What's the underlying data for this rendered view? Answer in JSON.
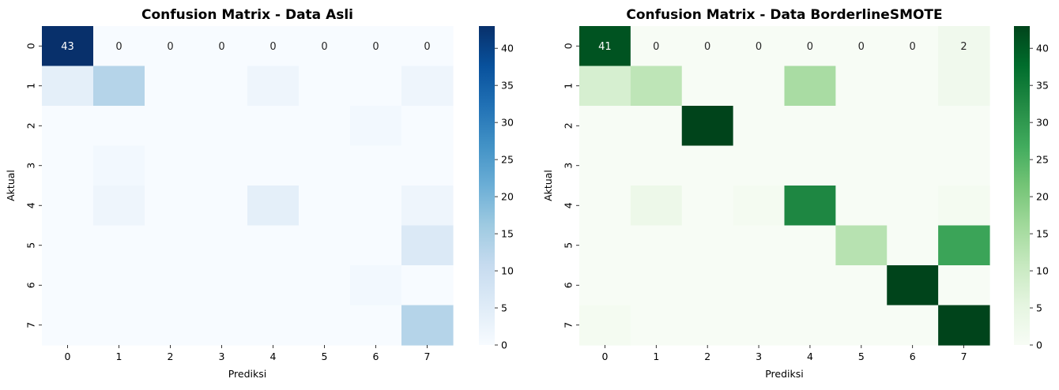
{
  "chart_data": [
    {
      "type": "heatmap",
      "title": "Confusion Matrix - Data Asli",
      "xlabel": "Prediksi",
      "ylabel": "Aktual",
      "x_categories": [
        "0",
        "1",
        "2",
        "3",
        "4",
        "5",
        "6",
        "7"
      ],
      "y_categories": [
        "0",
        "1",
        "2",
        "3",
        "4",
        "5",
        "6",
        "7"
      ],
      "values": [
        [
          43,
          0,
          0,
          0,
          0,
          0,
          0,
          0
        ],
        [
          4,
          13,
          0,
          0,
          2,
          0,
          0,
          2
        ],
        [
          0,
          0,
          0,
          0,
          0,
          0,
          1,
          0
        ],
        [
          0,
          1,
          0,
          0,
          0,
          0,
          0,
          0
        ],
        [
          0,
          2,
          0,
          0,
          4,
          0,
          0,
          2
        ],
        [
          0,
          0,
          0,
          0,
          0,
          0,
          0,
          6
        ],
        [
          0,
          0,
          0,
          0,
          0,
          0,
          1,
          0
        ],
        [
          0,
          0,
          0,
          0,
          0,
          0,
          0,
          13
        ]
      ],
      "annotated_rows": [
        0
      ],
      "colormap": "Blues",
      "colorbar": {
        "min": 0,
        "max": 43,
        "ticks": [
          0,
          5,
          10,
          15,
          20,
          25,
          30,
          35,
          40
        ]
      }
    },
    {
      "type": "heatmap",
      "title": "Confusion Matrix - Data BorderlineSMOTE",
      "xlabel": "Prediksi",
      "ylabel": "Aktual",
      "x_categories": [
        "0",
        "1",
        "2",
        "3",
        "4",
        "5",
        "6",
        "7"
      ],
      "y_categories": [
        "0",
        "1",
        "2",
        "3",
        "4",
        "5",
        "6",
        "7"
      ],
      "values": [
        [
          41,
          0,
          0,
          0,
          0,
          0,
          0,
          2
        ],
        [
          8,
          12,
          0,
          0,
          15,
          0,
          0,
          2
        ],
        [
          0,
          0,
          43,
          0,
          0,
          0,
          0,
          0
        ],
        [
          0,
          0,
          0,
          0,
          0,
          0,
          0,
          0
        ],
        [
          0,
          3,
          0,
          1,
          33,
          0,
          0,
          1
        ],
        [
          0,
          0,
          0,
          0,
          0,
          13,
          0,
          28
        ],
        [
          0,
          0,
          0,
          0,
          0,
          0,
          43,
          0
        ],
        [
          1,
          0,
          0,
          0,
          0,
          0,
          0,
          43
        ]
      ],
      "annotated_rows": [
        0
      ],
      "colormap": "Greens",
      "colorbar": {
        "min": 0,
        "max": 43,
        "ticks": [
          0,
          5,
          10,
          15,
          20,
          25,
          30,
          35,
          40
        ]
      }
    }
  ]
}
